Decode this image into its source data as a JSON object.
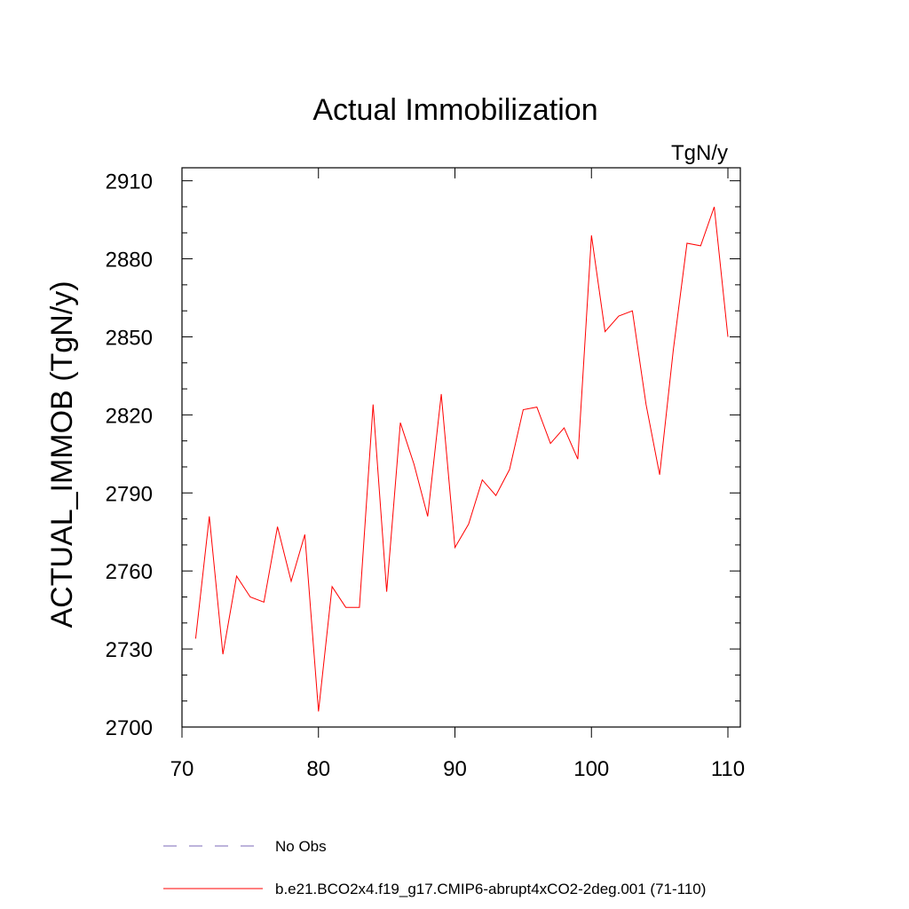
{
  "chart_data": {
    "type": "line",
    "title": "Actual Immobilization",
    "units_label": "TgN/y",
    "xlabel": "",
    "ylabel": "ACTUAL_IMMOB  (TgN/y)",
    "xlim": [
      70,
      110
    ],
    "ylim": [
      2700,
      2915
    ],
    "xticks": [
      70,
      80,
      90,
      100,
      110
    ],
    "yticks": [
      2700,
      2730,
      2760,
      2790,
      2820,
      2850,
      2880,
      2910
    ],
    "series": [
      {
        "name": "b.e21.BCO2x4.f19_g17.CMIP6-abrupt4xCO2-2deg.001 (71-110)",
        "color": "#ff0000",
        "style": "solid",
        "x": [
          71,
          72,
          73,
          74,
          75,
          76,
          77,
          78,
          79,
          80,
          81,
          82,
          83,
          84,
          85,
          86,
          87,
          88,
          89,
          90,
          91,
          92,
          93,
          94,
          95,
          96,
          97,
          98,
          99,
          100,
          101,
          102,
          103,
          104,
          105,
          106,
          107,
          108,
          109,
          110
        ],
        "values": [
          2734,
          2781,
          2728,
          2758,
          2750,
          2748,
          2777,
          2756,
          2774,
          2706,
          2754,
          2746,
          2746,
          2824,
          2752,
          2817,
          2801,
          2781,
          2828,
          2769,
          2778,
          2795,
          2789,
          2799,
          2822,
          2823,
          2809,
          2815,
          2803,
          2889,
          2852,
          2858,
          2860,
          2824,
          2797,
          2845,
          2886,
          2885,
          2900,
          2850
        ]
      }
    ],
    "legend": [
      {
        "label": "No Obs",
        "color": "#7b68b8",
        "style": "dashed"
      },
      {
        "label": "b.e21.BCO2x4.f19_g17.CMIP6-abrupt4xCO2-2deg.001 (71-110)",
        "color": "#ff0000",
        "style": "solid"
      }
    ]
  }
}
